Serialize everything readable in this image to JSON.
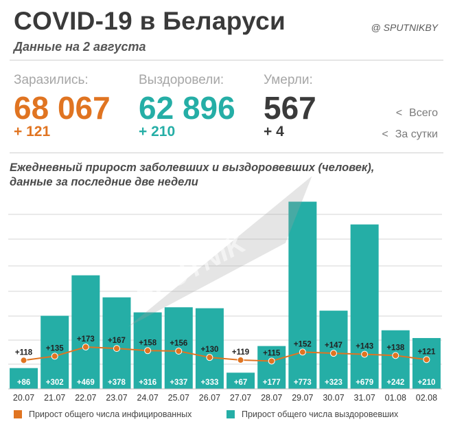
{
  "header": {
    "title": "COVID-19 в Беларуси",
    "credit": "@ SPUTNIKBY",
    "date": "Данные на 2 августа"
  },
  "stats": [
    {
      "label": "Заразились:",
      "total": "68 067",
      "delta": "+ 121",
      "color": "#e07421"
    },
    {
      "label": "Выздоровели:",
      "total": "62 896",
      "delta": "+ 210",
      "color": "#25aea6"
    },
    {
      "label": "Умерли:",
      "total": "567",
      "delta": "+ 4",
      "color": "#3a3a3a"
    }
  ],
  "hints": {
    "total": "Всего",
    "daily": "За сутки",
    "arrow": "<"
  },
  "watermark": "SPUTNIK",
  "chart_data": {
    "type": "bar",
    "title": "Ежедневный прирост заболевших и выздоровевших (человек), данные за последние две недели",
    "categories": [
      "20.07",
      "21.07",
      "22.07",
      "23.07",
      "24.07",
      "25.07",
      "26.07",
      "27.07",
      "28.07",
      "29.07",
      "30.07",
      "31.07",
      "01.08",
      "02.08"
    ],
    "series": [
      {
        "name": "Прирост общего числа выздоровевших",
        "type": "bar",
        "color": "#25aea6",
        "values": [
          86,
          302,
          469,
          378,
          316,
          337,
          333,
          67,
          177,
          773,
          323,
          679,
          242,
          210
        ],
        "labels": [
          "+86",
          "+302",
          "+469",
          "+378",
          "+316",
          "+337",
          "+333",
          "+67",
          "+177",
          "+773",
          "+323",
          "+679",
          "+242",
          "+210"
        ]
      },
      {
        "name": "Прирост общего числа инфицированных",
        "type": "line",
        "color": "#e07421",
        "values": [
          118,
          135,
          173,
          167,
          158,
          156,
          130,
          119,
          115,
          152,
          147,
          143,
          138,
          121
        ],
        "labels": [
          "+118",
          "+135",
          "+173",
          "+167",
          "+158",
          "+156",
          "+130",
          "+119",
          "+115",
          "+152",
          "+147",
          "+143",
          "+138",
          "+121"
        ]
      }
    ],
    "ylim": [
      0,
      800
    ],
    "grid": true,
    "legend": "bottom"
  }
}
